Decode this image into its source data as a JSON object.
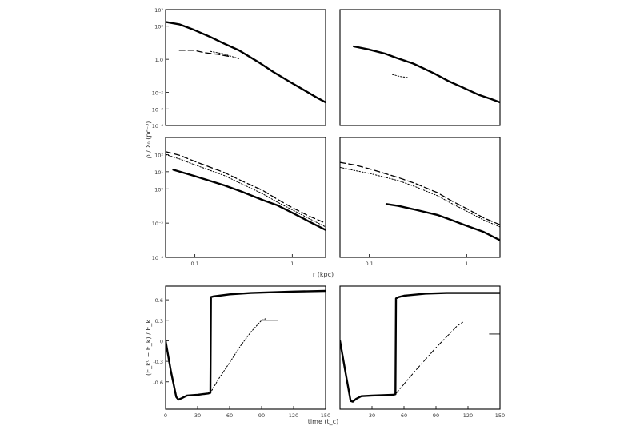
{
  "chart_data": [
    {
      "panel": "top-left",
      "type": "line",
      "scale": {
        "x": "log",
        "y": "log"
      },
      "xlim": [
        0.05,
        2.5
      ],
      "ylim": [
        0.0001,
        1000
      ],
      "yticks": [
        {
          "value": 1000,
          "label": "10³"
        },
        {
          "value": 100,
          "label": "10²"
        },
        {
          "value": 1,
          "label": "1.0"
        },
        {
          "value": 0.01,
          "label": "10⁻²"
        },
        {
          "value": 0.001,
          "label": "10⁻³"
        },
        {
          "value": 0.0001,
          "label": "10⁻⁴"
        }
      ],
      "series": [
        {
          "style": "thick",
          "x": [
            0.05,
            0.07,
            0.1,
            0.15,
            0.2,
            0.3,
            0.5,
            0.7,
            1.0,
            1.5,
            2.0,
            2.5
          ],
          "y": [
            180,
            130,
            60,
            22,
            10,
            3.5,
            0.6,
            0.17,
            0.05,
            0.013,
            0.005,
            0.0025
          ]
        },
        {
          "style": "dashed",
          "x": [
            0.07,
            0.1,
            0.13,
            0.18,
            0.25
          ],
          "y": [
            3.5,
            3.5,
            2.5,
            2.0,
            1.4
          ]
        },
        {
          "style": "dotted",
          "x": [
            0.15,
            0.2,
            0.25,
            0.3
          ],
          "y": [
            3.0,
            2.2,
            1.5,
            1.1
          ]
        }
      ]
    },
    {
      "panel": "top-right",
      "type": "line",
      "scale": {
        "x": "log",
        "y": "log"
      },
      "xlim": [
        0.05,
        2.5
      ],
      "ylim": [
        0.0001,
        1000
      ],
      "yticks": [],
      "series": [
        {
          "style": "thick",
          "x": [
            0.07,
            0.1,
            0.15,
            0.2,
            0.3,
            0.5,
            0.7,
            1.0,
            1.5,
            2.0,
            2.5
          ],
          "y": [
            6,
            4,
            2.2,
            1.2,
            0.55,
            0.14,
            0.05,
            0.02,
            0.007,
            0.004,
            0.0025
          ]
        },
        {
          "style": "dotted",
          "x": [
            0.18,
            0.22,
            0.26
          ],
          "y": [
            0.12,
            0.09,
            0.08
          ]
        }
      ]
    },
    {
      "panel": "middle-left",
      "type": "line",
      "scale": {
        "x": "log",
        "y": "log"
      },
      "xlim": [
        0.05,
        2.2
      ],
      "ylim": [
        0.0001,
        1000
      ],
      "yticks": [
        {
          "value": 100,
          "label": "10²"
        },
        {
          "value": 10,
          "label": "10¹"
        },
        {
          "value": 1,
          "label": "10⁰"
        },
        {
          "value": 0.01,
          "label": "10⁻²"
        },
        {
          "value": 0.0001,
          "label": "10⁻⁴"
        }
      ],
      "xticks": [
        {
          "value": 0.1,
          "label": "0.1"
        },
        {
          "value": 1,
          "label": "1"
        }
      ],
      "series": [
        {
          "style": "dashed",
          "x": [
            0.05,
            0.07,
            0.1,
            0.2,
            0.3,
            0.5,
            0.7,
            1.0,
            1.5,
            2.2
          ],
          "y": [
            150,
            90,
            40,
            9,
            3,
            0.8,
            0.25,
            0.08,
            0.025,
            0.01
          ]
        },
        {
          "style": "dotted",
          "x": [
            0.05,
            0.07,
            0.1,
            0.2,
            0.3,
            0.5,
            0.7,
            1.0,
            1.5,
            2.2
          ],
          "y": [
            100,
            55,
            25,
            6,
            2,
            0.5,
            0.17,
            0.06,
            0.018,
            0.006
          ]
        },
        {
          "style": "thick",
          "x": [
            0.06,
            0.1,
            0.2,
            0.3,
            0.5,
            0.7,
            1.0,
            1.5,
            2.2
          ],
          "y": [
            13,
            5.5,
            1.6,
            0.7,
            0.22,
            0.11,
            0.04,
            0.012,
            0.004
          ]
        }
      ]
    },
    {
      "panel": "middle-right",
      "type": "line",
      "scale": {
        "x": "log",
        "y": "log"
      },
      "xlim": [
        0.05,
        2.2
      ],
      "ylim": [
        0.0001,
        1000
      ],
      "yticks": [],
      "xticks": [
        {
          "value": 0.1,
          "label": "0.1"
        },
        {
          "value": 1,
          "label": "1"
        }
      ],
      "series": [
        {
          "style": "dashed",
          "x": [
            0.05,
            0.07,
            0.1,
            0.2,
            0.3,
            0.5,
            0.7,
            1.0,
            1.5,
            2.2
          ],
          "y": [
            35,
            25,
            15,
            4.5,
            2,
            0.6,
            0.2,
            0.07,
            0.02,
            0.008
          ]
        },
        {
          "style": "dotted",
          "x": [
            0.05,
            0.07,
            0.1,
            0.2,
            0.3,
            0.5,
            0.7,
            1.0,
            1.5,
            2.2
          ],
          "y": [
            18,
            12,
            8,
            3,
            1.3,
            0.4,
            0.14,
            0.05,
            0.015,
            0.006
          ]
        },
        {
          "style": "thick",
          "x": [
            0.15,
            0.2,
            0.3,
            0.5,
            0.7,
            1.0,
            1.5,
            2.2
          ],
          "y": [
            0.13,
            0.1,
            0.06,
            0.03,
            0.015,
            0.007,
            0.003,
            0.001
          ]
        }
      ]
    },
    {
      "panel": "bottom-left",
      "type": "line",
      "scale": {
        "x": "linear",
        "y": "linear"
      },
      "xlim": [
        0,
        150
      ],
      "ylim": [
        -1.0,
        0.8
      ],
      "yticks": [
        {
          "value": 0.6,
          "label": "0.6"
        },
        {
          "value": 0.3,
          "label": "0.3"
        },
        {
          "value": 0,
          "label": "0"
        },
        {
          "value": -0.3,
          "label": "-0.3"
        },
        {
          "value": -0.6,
          "label": "-0.6"
        }
      ],
      "xticks": [
        {
          "value": 0,
          "label": "0"
        },
        {
          "value": 30,
          "label": "30"
        },
        {
          "value": 60,
          "label": "60"
        },
        {
          "value": 90,
          "label": "90"
        },
        {
          "value": 120,
          "label": "120"
        },
        {
          "value": 150,
          "label": "150"
        }
      ],
      "series": [
        {
          "style": "thick",
          "x": [
            0,
            5,
            10,
            12,
            15,
            20,
            30,
            40,
            42,
            42.5,
            45,
            50,
            60,
            80,
            100,
            120,
            150
          ],
          "y": [
            0,
            -0.45,
            -0.82,
            -0.86,
            -0.84,
            -0.8,
            -0.79,
            -0.77,
            -0.76,
            0.64,
            0.65,
            0.66,
            0.68,
            0.7,
            0.71,
            0.72,
            0.73
          ]
        },
        {
          "style": "dotted",
          "x": [
            42,
            50,
            60,
            70,
            80,
            90,
            95
          ],
          "y": [
            -0.76,
            -0.55,
            -0.32,
            -0.08,
            0.13,
            0.3,
            0.33
          ]
        },
        {
          "style": "solid-thin",
          "x": [
            90,
            105
          ],
          "y": [
            0.3,
            0.3
          ]
        }
      ]
    },
    {
      "panel": "bottom-right",
      "type": "line",
      "scale": {
        "x": "linear",
        "y": "linear"
      },
      "xlim": [
        0,
        150
      ],
      "ylim": [
        -1.0,
        0.8
      ],
      "yticks": [],
      "xticks": [
        {
          "value": 30,
          "label": "30"
        },
        {
          "value": 60,
          "label": "60"
        },
        {
          "value": 90,
          "label": "90"
        },
        {
          "value": 120,
          "label": "120"
        },
        {
          "value": 150,
          "label": "150"
        }
      ],
      "series": [
        {
          "style": "thick",
          "x": [
            0,
            5,
            10,
            12,
            15,
            20,
            30,
            50,
            52,
            52.5,
            55,
            60,
            80,
            100,
            120,
            150
          ],
          "y": [
            0,
            -0.45,
            -0.88,
            -0.89,
            -0.85,
            -0.81,
            -0.8,
            -0.79,
            -0.78,
            0.62,
            0.64,
            0.66,
            0.69,
            0.7,
            0.7,
            0.7
          ]
        },
        {
          "style": "dashdot",
          "x": [
            52,
            70,
            90,
            110,
            115
          ],
          "y": [
            -0.78,
            -0.45,
            -0.1,
            0.22,
            0.27
          ]
        },
        {
          "style": "solid-thin",
          "x": [
            140,
            150
          ],
          "y": [
            0.1,
            0.1
          ]
        }
      ]
    }
  ],
  "labels": {
    "ylabel_top": "ρ / Σ₀ (pc⁻³)",
    "xlabel_top": "r (kpc)",
    "ylabel_bottom": "(E_k⁰ − E_k) / E_k",
    "xlabel_bottom": "time (t_c)"
  }
}
